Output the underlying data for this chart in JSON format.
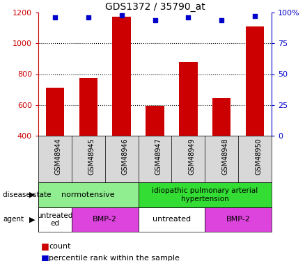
{
  "title": "GDS1372 / 35790_at",
  "samples": [
    "GSM48944",
    "GSM48945",
    "GSM48946",
    "GSM48947",
    "GSM48949",
    "GSM48948",
    "GSM48950"
  ],
  "counts": [
    710,
    775,
    1175,
    595,
    880,
    645,
    1110
  ],
  "percentiles": [
    96,
    96,
    98,
    94,
    96,
    94,
    97
  ],
  "ylim_left": [
    400,
    1200
  ],
  "ylim_right": [
    0,
    100
  ],
  "bar_color": "#cc0000",
  "scatter_color": "#0000cc",
  "disease_color_norm": "#90ee90",
  "disease_color_ipah": "#33dd33",
  "agent_color_untreated": "#ffffff",
  "agent_color_bmp2": "#dd44dd",
  "left_yticks": [
    400,
    600,
    800,
    1000,
    1200
  ],
  "right_yticks": [
    0,
    25,
    50,
    75,
    100
  ],
  "right_yticklabels": [
    "0",
    "25",
    "50",
    "75",
    "100%"
  ],
  "gridlines": [
    600,
    800,
    1000
  ],
  "fig_w": 4.38,
  "fig_h": 3.75,
  "dpi": 100
}
